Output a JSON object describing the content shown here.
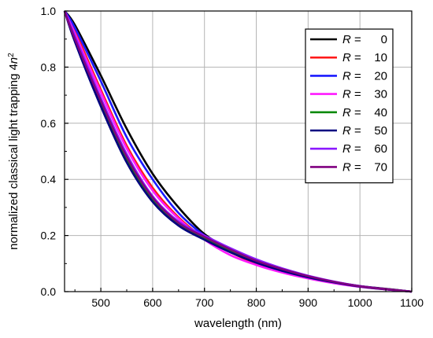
{
  "chart_data": {
    "type": "line",
    "title": "",
    "xlabel": "wavelength (nm)",
    "ylabel_main": "normalized classical light trapping 4",
    "ylabel_var": "n",
    "ylabel_exp": "2",
    "xlim": [
      430,
      1100
    ],
    "ylim": [
      0,
      1
    ],
    "xticks": [
      500,
      600,
      700,
      800,
      900,
      1000,
      1100
    ],
    "xtick_labels": [
      "500",
      "600",
      "700",
      "800",
      "900",
      "1000",
      "1100"
    ],
    "yticks": [
      0,
      0.2,
      0.4,
      0.6,
      0.8,
      1.0
    ],
    "ytick_labels": [
      "0.0",
      "0.2",
      "0.4",
      "0.6",
      "0.8",
      "1.0"
    ],
    "grid": true,
    "legend_position": "top-right",
    "legend_var": "R",
    "legend_eq": " = ",
    "x": [
      430,
      450,
      500,
      550,
      600,
      650,
      700,
      750,
      800,
      850,
      900,
      950,
      1000,
      1050,
      1100
    ],
    "series": [
      {
        "name": "0",
        "color": "#000000",
        "values": [
          1.0,
          0.95,
          0.77,
          0.58,
          0.42,
          0.3,
          0.205,
          0.15,
          0.11,
          0.08,
          0.055,
          0.035,
          0.02,
          0.01,
          0.0
        ]
      },
      {
        "name": "10",
        "color": "#ff1a1a",
        "values": [
          1.0,
          0.93,
          0.72,
          0.52,
          0.37,
          0.265,
          0.19,
          0.14,
          0.1,
          0.073,
          0.05,
          0.032,
          0.018,
          0.008,
          0.0
        ]
      },
      {
        "name": "20",
        "color": "#1a1aff",
        "values": [
          1.0,
          0.94,
          0.75,
          0.55,
          0.4,
          0.28,
          0.2,
          0.145,
          0.105,
          0.075,
          0.052,
          0.033,
          0.019,
          0.009,
          0.0
        ]
      },
      {
        "name": "30",
        "color": "#ff1aff",
        "values": [
          1.0,
          0.92,
          0.71,
          0.51,
          0.36,
          0.26,
          0.185,
          0.13,
          0.095,
          0.068,
          0.047,
          0.03,
          0.017,
          0.008,
          0.0
        ]
      },
      {
        "name": "40",
        "color": "#0a8a0a",
        "values": [
          1.0,
          0.9,
          0.67,
          0.47,
          0.33,
          0.24,
          0.19,
          0.145,
          0.107,
          0.077,
          0.053,
          0.034,
          0.019,
          0.009,
          0.0
        ]
      },
      {
        "name": "50",
        "color": "#000080",
        "values": [
          1.0,
          0.89,
          0.66,
          0.46,
          0.32,
          0.235,
          0.185,
          0.14,
          0.103,
          0.074,
          0.051,
          0.033,
          0.018,
          0.008,
          0.0
        ]
      },
      {
        "name": "60",
        "color": "#8c1aff",
        "values": [
          1.0,
          0.91,
          0.69,
          0.49,
          0.34,
          0.25,
          0.2,
          0.155,
          0.115,
          0.083,
          0.057,
          0.036,
          0.02,
          0.009,
          0.0
        ]
      },
      {
        "name": "70",
        "color": "#800080",
        "values": [
          1.0,
          0.9,
          0.68,
          0.48,
          0.335,
          0.245,
          0.195,
          0.15,
          0.11,
          0.08,
          0.055,
          0.035,
          0.019,
          0.009,
          0.0
        ]
      }
    ]
  }
}
